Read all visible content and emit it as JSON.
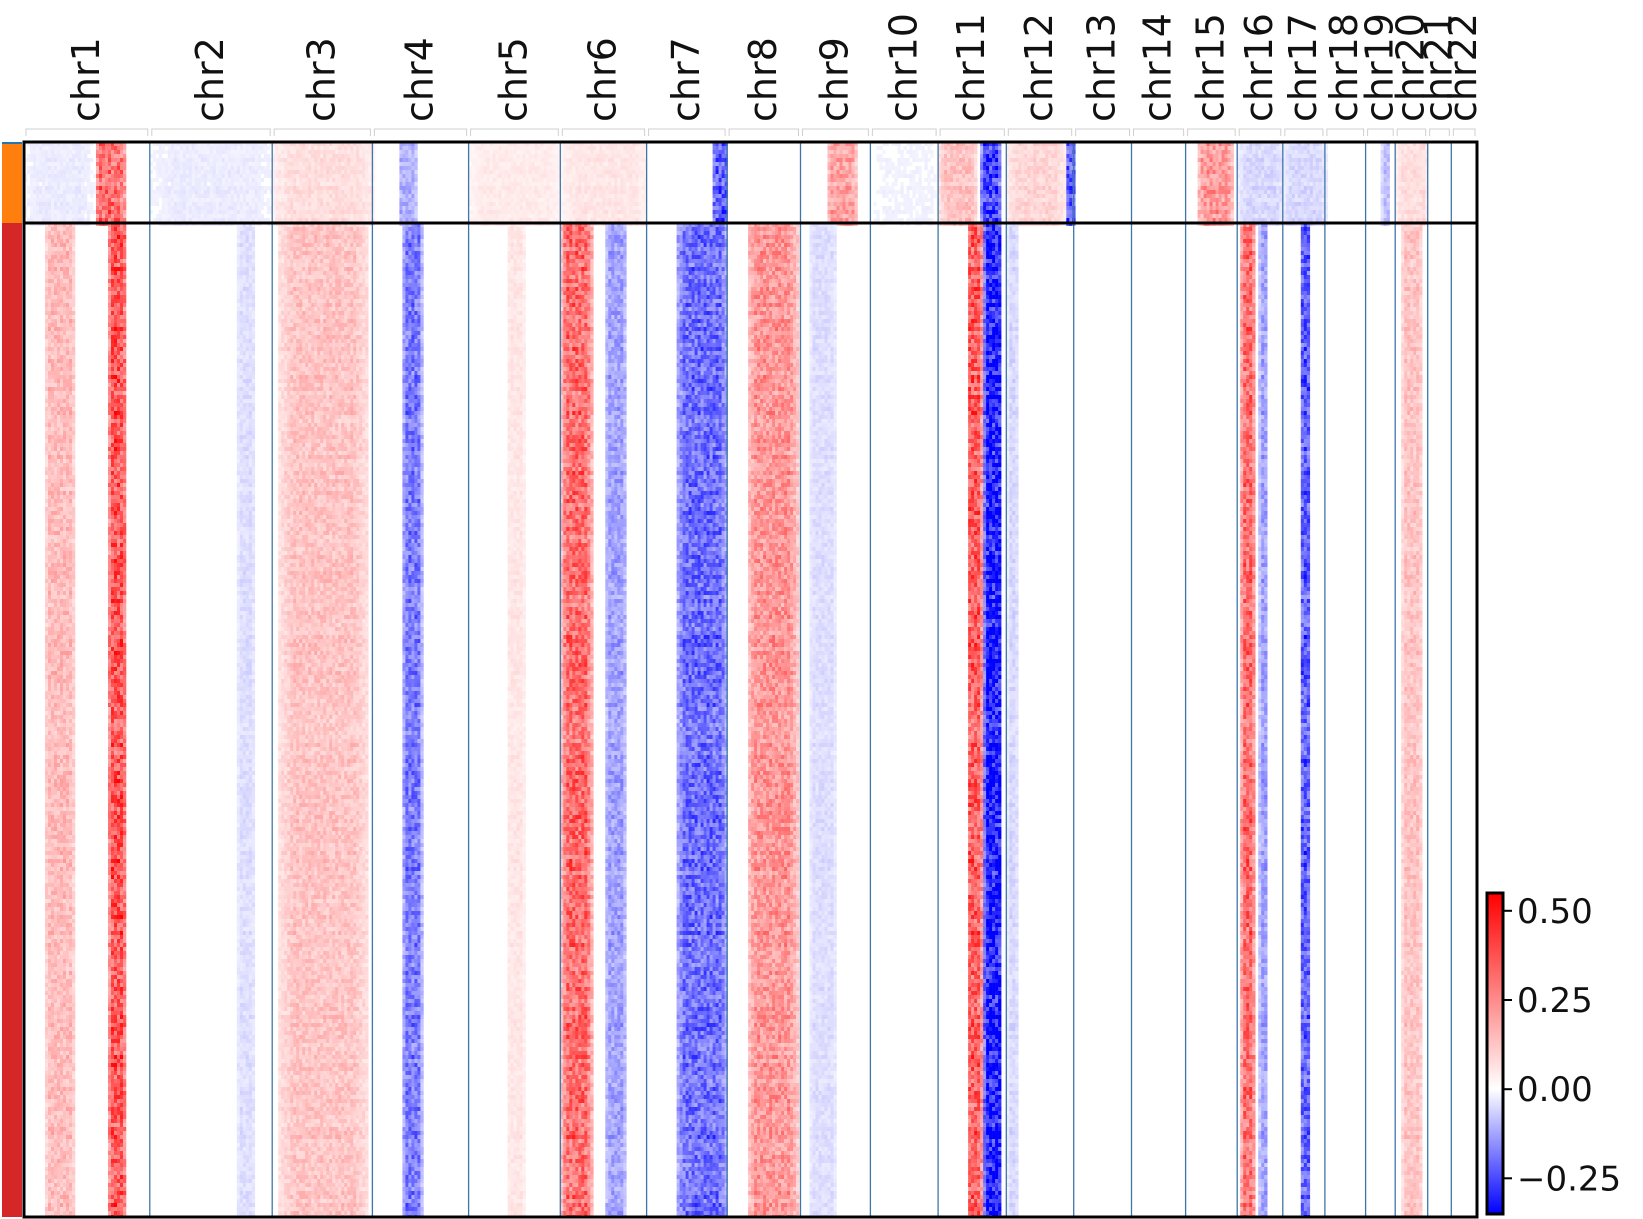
{
  "chart_data": {
    "type": "heatmap",
    "title": "",
    "xlabel": "",
    "ylabel": "",
    "chromosomes": [
      "chr1",
      "chr2",
      "chr3",
      "chr4",
      "chr5",
      "chr6",
      "chr7",
      "chr8",
      "chr9",
      "chr10",
      "chr11",
      "chr12",
      "chr13",
      "chr14",
      "chr15",
      "chr16",
      "chr17",
      "chr18",
      "chr19",
      "chr20",
      "chr21",
      "chr22"
    ],
    "chrom_lengths_mb": [
      248.9,
      242.2,
      198.3,
      190.2,
      181.5,
      170.8,
      159.3,
      145.1,
      138.4,
      133.8,
      135.1,
      133.3,
      114.4,
      107.0,
      102.0,
      90.3,
      83.3,
      80.4,
      58.6,
      64.4,
      46.7,
      50.8
    ],
    "row_groups": [
      {
        "color": "#ff7f0e",
        "fraction": 0.075
      },
      {
        "color": "#d62728",
        "fraction": 0.925
      }
    ],
    "colorbar": {
      "ticks": [
        "0.50",
        "0.25",
        "0.00",
        "−0.25"
      ],
      "tick_values": [
        0.5,
        0.25,
        0.0,
        -0.25
      ],
      "range": [
        -0.35,
        0.55
      ],
      "colors": {
        "low": "#0000ff",
        "mid": "#ffffff",
        "high": "#ff0000"
      }
    },
    "pattern": {
      "group_1": [
        {
          "chrom": "chr1",
          "segments": [
            [
              0.55,
              0.8,
              0.35
            ],
            [
              0.0,
              0.55,
              -0.03
            ]
          ]
        },
        {
          "chrom": "chr2",
          "segments": [
            [
              0.0,
              1.0,
              -0.03
            ]
          ]
        },
        {
          "chrom": "chr3",
          "segments": [
            [
              0.0,
              1.0,
              0.08
            ]
          ]
        },
        {
          "chrom": "chr4",
          "segments": [
            [
              0.25,
              0.45,
              -0.12
            ]
          ]
        },
        {
          "chrom": "chr5",
          "segments": [
            [
              0.0,
              1.0,
              0.05
            ]
          ]
        },
        {
          "chrom": "chr6",
          "segments": [
            [
              0.0,
              1.0,
              0.06
            ]
          ]
        },
        {
          "chrom": "chr7",
          "segments": [
            [
              0.8,
              1.0,
              -0.25
            ]
          ]
        },
        {
          "chrom": "chr9",
          "segments": [
            [
              0.35,
              0.8,
              0.22
            ]
          ]
        },
        {
          "chrom": "chr10",
          "segments": [
            [
              0.0,
              1.0,
              -0.02
            ]
          ]
        },
        {
          "chrom": "chr11",
          "segments": [
            [
              0.0,
              0.55,
              0.15
            ],
            [
              0.6,
              0.9,
              -0.3
            ]
          ]
        },
        {
          "chrom": "chr12",
          "segments": [
            [
              0.0,
              0.85,
              0.1
            ],
            [
              0.85,
              1.0,
              -0.25
            ]
          ]
        },
        {
          "chrom": "chr15",
          "segments": [
            [
              0.2,
              0.9,
              0.25
            ]
          ]
        },
        {
          "chrom": "chr16",
          "segments": [
            [
              0.0,
              1.0,
              -0.06
            ]
          ]
        },
        {
          "chrom": "chr17",
          "segments": [
            [
              0.0,
              1.0,
              -0.06
            ]
          ]
        },
        {
          "chrom": "chr19",
          "segments": [
            [
              0.5,
              0.8,
              -0.1
            ]
          ]
        },
        {
          "chrom": "chr20",
          "segments": [
            [
              0.0,
              1.0,
              0.08
            ]
          ]
        }
      ],
      "group_2": [
        {
          "chrom": "chr1",
          "segments": [
            [
              0.15,
              0.4,
              0.16
            ],
            [
              0.66,
              0.8,
              0.4
            ]
          ]
        },
        {
          "chrom": "chr2",
          "segments": [
            [
              0.7,
              0.85,
              -0.05
            ]
          ]
        },
        {
          "chrom": "chr3",
          "segments": [
            [
              0.05,
              0.95,
              0.14
            ]
          ]
        },
        {
          "chrom": "chr4",
          "segments": [
            [
              0.3,
              0.5,
              -0.2
            ]
          ]
        },
        {
          "chrom": "chr5",
          "segments": [
            [
              0.4,
              0.6,
              0.06
            ]
          ]
        },
        {
          "chrom": "chr6",
          "segments": [
            [
              0.0,
              0.35,
              0.35
            ],
            [
              0.5,
              0.75,
              -0.14
            ]
          ]
        },
        {
          "chrom": "chr7",
          "segments": [
            [
              0.35,
              1.0,
              -0.22
            ]
          ]
        },
        {
          "chrom": "chr8",
          "segments": [
            [
              0.25,
              0.95,
              0.25
            ]
          ]
        },
        {
          "chrom": "chr9",
          "segments": [
            [
              0.1,
              0.5,
              -0.05
            ]
          ]
        },
        {
          "chrom": "chr11",
          "segments": [
            [
              0.4,
              0.63,
              0.38
            ],
            [
              0.65,
              0.92,
              -0.35
            ]
          ]
        },
        {
          "chrom": "chr12",
          "segments": [
            [
              0.0,
              0.15,
              -0.06
            ]
          ]
        },
        {
          "chrom": "chr16",
          "segments": [
            [
              0.05,
              0.35,
              0.35
            ],
            [
              0.45,
              0.65,
              -0.14
            ]
          ]
        },
        {
          "chrom": "chr17",
          "segments": [
            [
              0.4,
              0.6,
              -0.25
            ]
          ]
        },
        {
          "chrom": "chr20",
          "segments": [
            [
              0.15,
              0.8,
              0.14
            ]
          ]
        }
      ]
    }
  }
}
